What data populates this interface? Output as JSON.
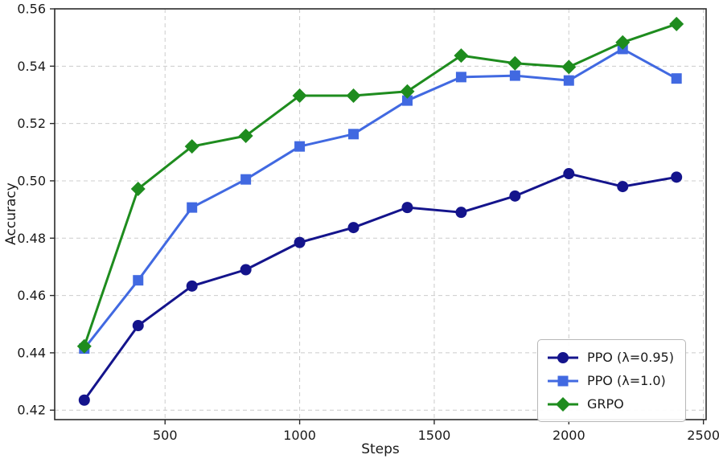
{
  "chart_data": {
    "type": "line",
    "title": "",
    "xlabel": "Steps",
    "ylabel": "Accuracy",
    "x": [
      200,
      400,
      600,
      800,
      1000,
      1200,
      1400,
      1600,
      1800,
      2000,
      2200,
      2400
    ],
    "xlim": [
      90,
      2510
    ],
    "ylim": [
      0.4167,
      0.56
    ],
    "xticks": [
      500,
      1000,
      1500,
      2000,
      2500
    ],
    "yticks": [
      0.42,
      0.44,
      0.46,
      0.48,
      0.5,
      0.52,
      0.54,
      0.56
    ],
    "grid": true,
    "grid_style": "dashed",
    "grid_color": "#cccccc",
    "spine_color": "#2b2b2b",
    "legend_position": "lower right",
    "series": [
      {
        "name": "PPO (λ=0.95)",
        "color": "#14148c",
        "marker": "circle",
        "values": [
          0.4235,
          0.4495,
          0.4633,
          0.469,
          0.4785,
          0.4837,
          0.4907,
          0.489,
          0.4947,
          0.5025,
          0.498,
          0.5013
        ]
      },
      {
        "name": "PPO (λ=1.0)",
        "color": "#4169e1",
        "marker": "square",
        "values": [
          0.4415,
          0.4653,
          0.4907,
          0.5005,
          0.512,
          0.5163,
          0.528,
          0.5362,
          0.5367,
          0.535,
          0.546,
          0.5357
        ]
      },
      {
        "name": "GRPO",
        "color": "#1e8c1e",
        "marker": "diamond",
        "values": [
          0.4423,
          0.4972,
          0.512,
          0.5157,
          0.5297,
          0.5297,
          0.5312,
          0.5437,
          0.541,
          0.5397,
          0.5483,
          0.5547
        ]
      }
    ]
  }
}
